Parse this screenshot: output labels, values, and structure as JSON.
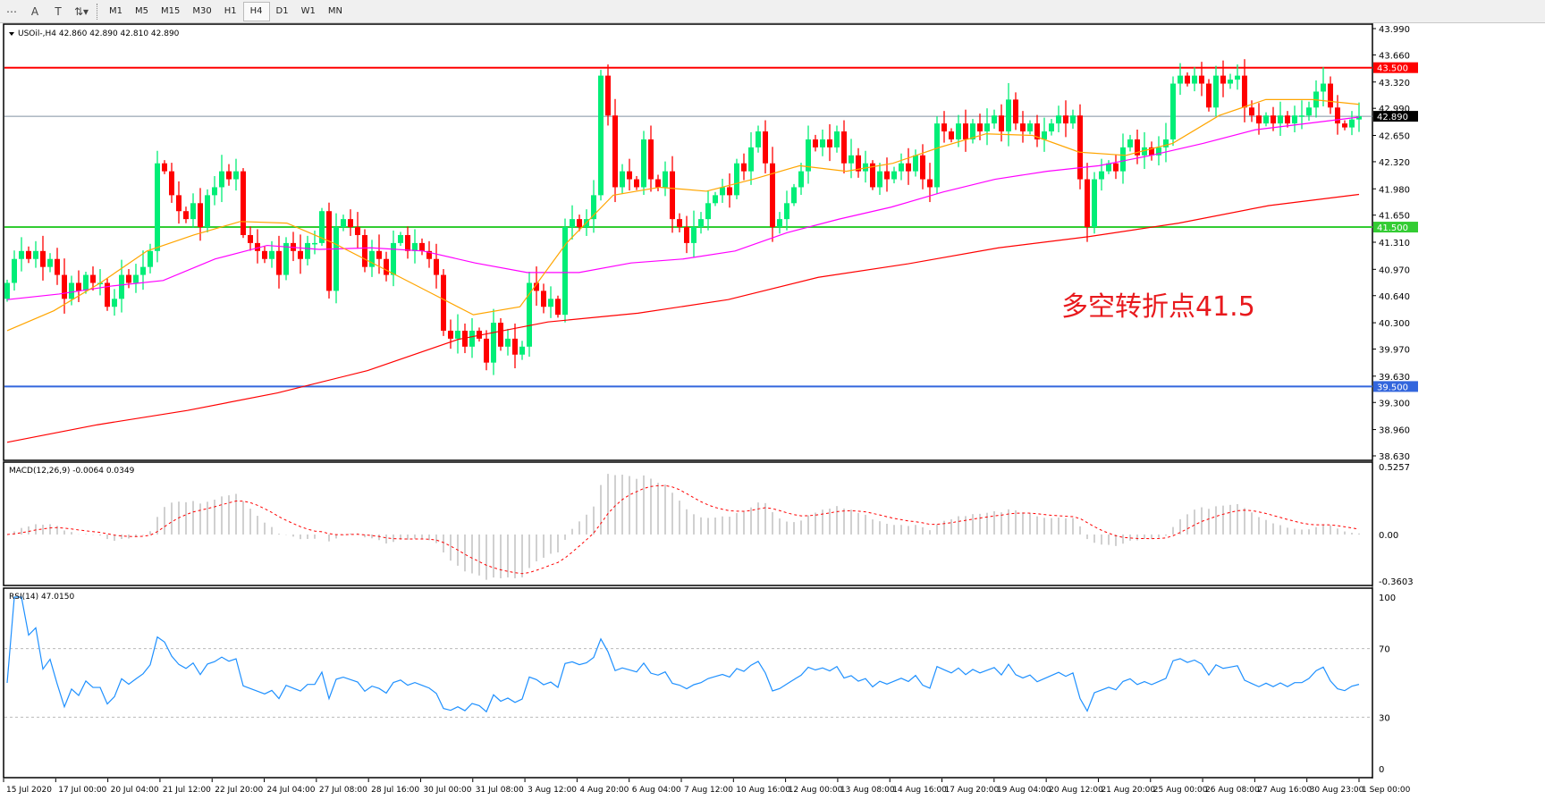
{
  "toolbar": {
    "tools": [
      {
        "name": "grid-icon",
        "glyph": "⋯"
      },
      {
        "name": "text-icon",
        "glyph": "A"
      },
      {
        "name": "text-label-icon",
        "glyph": "T"
      },
      {
        "name": "arrows-icon",
        "glyph": "⇅▾"
      }
    ],
    "timeframes": [
      "M1",
      "M5",
      "M15",
      "M30",
      "H1",
      "H4",
      "D1",
      "W1",
      "MN"
    ],
    "active": "H4"
  },
  "main": {
    "header": "USOil-,H4  42.860 42.890 42.810 42.890",
    "price_ticks": [
      "43.990",
      "43.660",
      "43.320",
      "42.990",
      "42.650",
      "42.320",
      "41.980",
      "41.650",
      "41.310",
      "40.970",
      "40.640",
      "40.300",
      "39.970",
      "39.630",
      "39.300",
      "38.960",
      "38.630"
    ],
    "price_range": [
      38.63,
      43.99
    ],
    "levels": [
      {
        "value": 43.5,
        "label": "43.500",
        "color": "#ff0000"
      },
      {
        "value": 42.89,
        "label": "42.890",
        "color": "#000000",
        "line": "#8090a0"
      },
      {
        "value": 41.5,
        "label": "41.500",
        "color": "#33cc33"
      },
      {
        "value": 39.5,
        "label": "39.500",
        "color": "#3366dd"
      }
    ],
    "annotation": "多空转折点41.5",
    "colors": {
      "bull": "#00ee77",
      "bear": "#ff0000",
      "ma_fast": "#ffa500",
      "ma_mid": "#ff00ff",
      "ma_slow": "#ff0000"
    },
    "closes": [
      40.8,
      41.1,
      41.2,
      41.1,
      41.2,
      41.0,
      41.1,
      40.9,
      40.6,
      40.8,
      40.7,
      40.9,
      40.8,
      40.8,
      40.5,
      40.6,
      40.9,
      40.8,
      40.9,
      41.0,
      41.2,
      42.3,
      42.2,
      41.9,
      41.7,
      41.6,
      41.8,
      41.5,
      41.9,
      42.0,
      42.2,
      42.1,
      42.2,
      41.4,
      41.3,
      41.2,
      41.1,
      41.2,
      40.9,
      41.3,
      41.2,
      41.1,
      41.3,
      41.3,
      41.7,
      40.7,
      41.5,
      41.6,
      41.5,
      41.4,
      41.0,
      41.2,
      41.1,
      40.9,
      41.3,
      41.4,
      41.2,
      41.3,
      41.2,
      41.1,
      40.9,
      40.2,
      40.1,
      40.2,
      40.0,
      40.2,
      40.1,
      39.8,
      40.3,
      40.0,
      40.1,
      39.9,
      40.0,
      40.8,
      40.7,
      40.5,
      40.6,
      40.4,
      41.5,
      41.6,
      41.5,
      41.6,
      41.9,
      43.4,
      42.9,
      42.0,
      42.2,
      42.1,
      42.0,
      42.6,
      42.1,
      42.0,
      42.2,
      41.6,
      41.5,
      41.3,
      41.5,
      41.6,
      41.8,
      41.9,
      42.0,
      41.9,
      42.3,
      42.2,
      42.5,
      42.7,
      42.3,
      41.5,
      41.6,
      41.8,
      42.0,
      42.2,
      42.6,
      42.5,
      42.6,
      42.5,
      42.7,
      42.3,
      42.4,
      42.2,
      42.3,
      42.0,
      42.2,
      42.1,
      42.2,
      42.3,
      42.2,
      42.4,
      42.1,
      42.0,
      42.8,
      42.7,
      42.6,
      42.8,
      42.6,
      42.8,
      42.7,
      42.8,
      42.9,
      42.7,
      43.1,
      42.8,
      42.7,
      42.8,
      42.6,
      42.7,
      42.8,
      42.9,
      42.8,
      42.9,
      42.1,
      41.5,
      42.1,
      42.2,
      42.3,
      42.2,
      42.5,
      42.6,
      42.4,
      42.5,
      42.4,
      42.5,
      42.6,
      43.3,
      43.4,
      43.3,
      43.4,
      43.3,
      43.0,
      43.4,
      43.3,
      43.35,
      43.4,
      43.0,
      42.9,
      42.8,
      42.9,
      42.8,
      42.9,
      42.8,
      42.9,
      42.9,
      43.0,
      43.2,
      43.3,
      43.0,
      42.8,
      42.75,
      42.85,
      42.89
    ],
    "ma_fast": [
      40.2,
      40.45,
      40.8,
      41.2,
      41.4,
      41.57,
      41.55,
      41.3,
      41.0,
      40.7,
      40.4,
      40.5,
      41.3,
      41.9,
      42.0,
      41.95,
      42.1,
      42.27,
      42.2,
      42.3,
      42.5,
      42.67,
      42.65,
      42.44,
      42.4,
      42.55,
      42.9,
      43.1,
      43.1,
      43.04
    ],
    "ma_mid": [
      40.59,
      40.66,
      40.76,
      40.83,
      41.1,
      41.27,
      41.22,
      41.24,
      41.2,
      41.05,
      40.93,
      40.93,
      41.05,
      41.1,
      41.2,
      41.43,
      41.6,
      41.75,
      41.94,
      42.1,
      42.2,
      42.27,
      42.4,
      42.55,
      42.72,
      42.8,
      42.88
    ],
    "ma_slow": [
      38.8,
      39.02,
      39.2,
      39.42,
      39.7,
      40.09,
      40.31,
      40.42,
      40.59,
      40.87,
      41.04,
      41.24,
      41.38,
      41.55,
      41.77,
      41.91
    ]
  },
  "macd": {
    "header": "MACD(12,26,9) -0.0064 0.0349",
    "ticks": [
      "0.5257",
      "0.00",
      "-0.3603"
    ],
    "range": [
      -0.3603,
      0.5257
    ]
  },
  "rsi": {
    "header": "RSI(14) 47.0150",
    "ticks": [
      "100",
      "70",
      "30",
      "0"
    ],
    "color": "#1e90ff"
  },
  "time_axis": [
    "15 Jul 2020",
    "17 Jul 00:00",
    "20 Jul 04:00",
    "21 Jul 12:00",
    "22 Jul 20:00",
    "24 Jul 04:00",
    "27 Jul 08:00",
    "28 Jul 16:00",
    "30 Jul 00:00",
    "31 Jul 08:00",
    "3 Aug 12:00",
    "4 Aug 20:00",
    "6 Aug 04:00",
    "7 Aug 12:00",
    "10 Aug 16:00",
    "12 Aug 00:00",
    "13 Aug 08:00",
    "14 Aug 16:00",
    "17 Aug 20:00",
    "19 Aug 04:00",
    "20 Aug 12:00",
    "21 Aug 20:00",
    "25 Aug 00:00",
    "26 Aug 08:00",
    "27 Aug 16:00",
    "30 Aug 23:00",
    "1 Sep 00:00"
  ]
}
